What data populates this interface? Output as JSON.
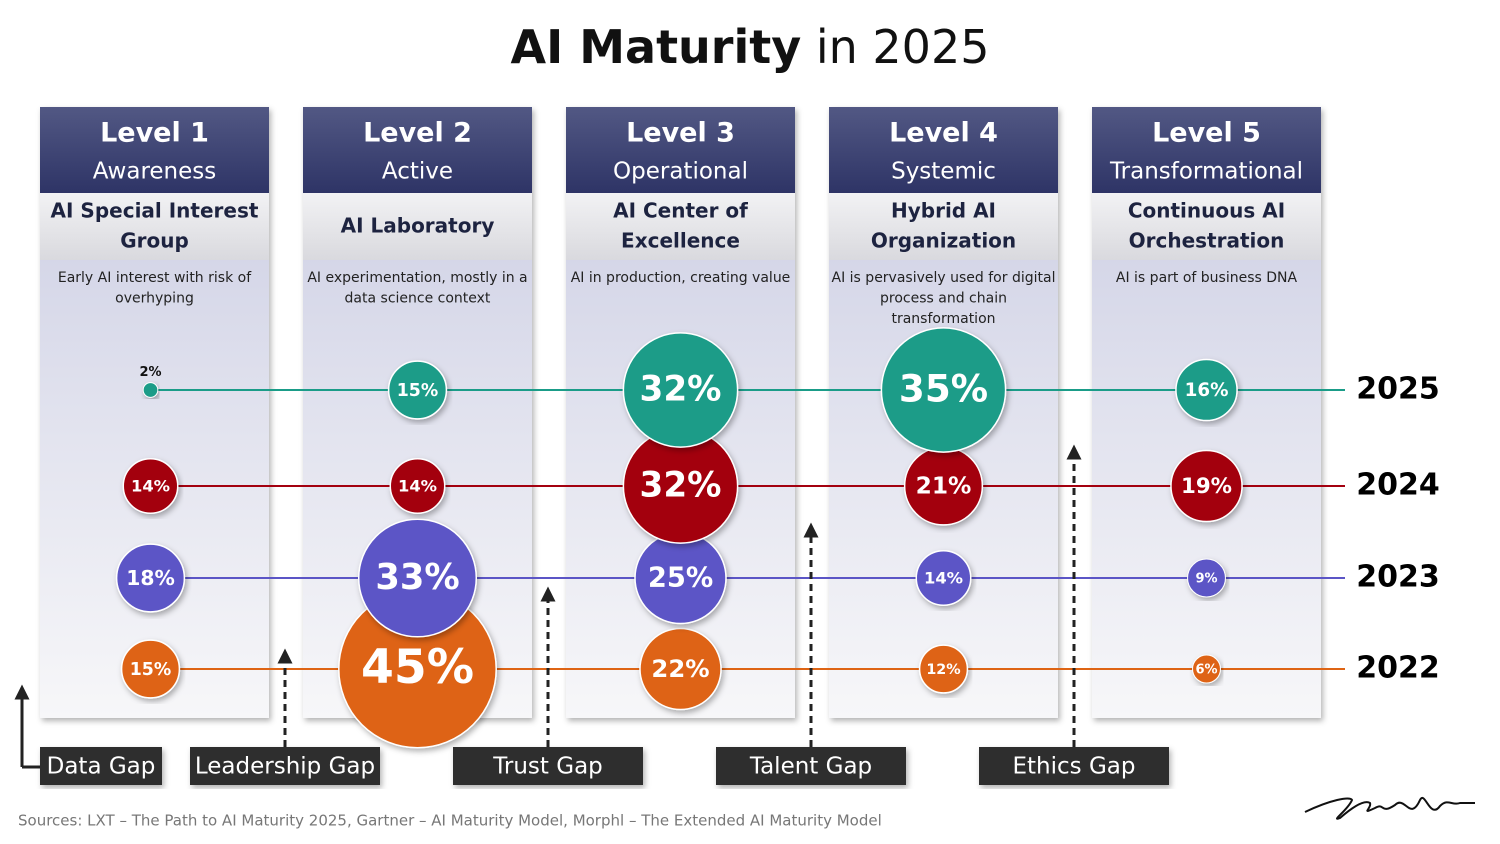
{
  "chart_data": {
    "type": "bubble",
    "title": {
      "bold": "AI Maturity",
      "rest": "in 2025"
    },
    "categories": [
      "Level 1",
      "Level 2",
      "Level 3",
      "Level 4",
      "Level 5"
    ],
    "stages": [
      "Awareness",
      "Active",
      "Operational",
      "Systemic",
      "Transformational"
    ],
    "models": [
      [
        "AI Special Interest",
        "Group"
      ],
      [
        "AI Laboratory"
      ],
      [
        "AI Center of",
        "Excellence"
      ],
      [
        "Hybrid AI",
        "Organization"
      ],
      [
        "Continuous AI",
        "Orchestration"
      ]
    ],
    "descriptions": [
      [
        "Early AI interest with risk of",
        "overhyping"
      ],
      [
        "AI experimentation, mostly in a",
        "data science context"
      ],
      [
        "AI in production, creating value"
      ],
      [
        "AI is pervasively used for digital",
        "process and chain",
        "transformation"
      ],
      [
        "AI is part of business DNA"
      ]
    ],
    "series": [
      {
        "name": "2025",
        "color": "#1a9c88",
        "values": [
          2,
          15,
          32,
          35,
          16
        ],
        "value_labels": [
          "2%",
          "15%",
          "32%",
          "35%",
          "16%"
        ]
      },
      {
        "name": "2024",
        "color": "#a3000f",
        "values": [
          14,
          14,
          32,
          21,
          19
        ],
        "value_labels": [
          "14%",
          "14%",
          "32%",
          "21%",
          "19%"
        ]
      },
      {
        "name": "2023",
        "color": "#5b55c6",
        "values": [
          18,
          33,
          25,
          14,
          9
        ],
        "value_labels": [
          "18%",
          "33%",
          "25%",
          "14%",
          "9%"
        ]
      },
      {
        "name": "2022",
        "color": "#de6414",
        "values": [
          15,
          45,
          22,
          12,
          6
        ],
        "value_labels": [
          "15%",
          "45%",
          "22%",
          "12%",
          "6%"
        ]
      }
    ],
    "gaps": [
      "Data Gap",
      "Leadership Gap",
      "Trust Gap",
      "Talent Gap",
      "Ethics Gap"
    ],
    "source": "Sources: LXT – The Path to AI Maturity 2025, Gartner – AI Maturity Model, Morphl – The Extended AI Maturity Model"
  }
}
